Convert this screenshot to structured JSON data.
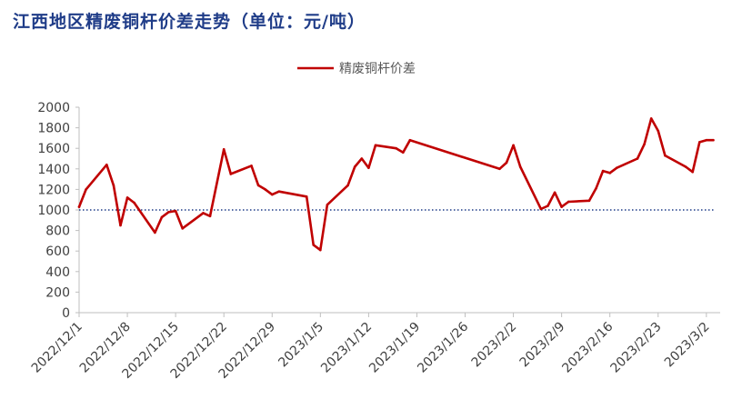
{
  "chart_data": {
    "type": "line",
    "title": "江西地区精废铜杆价差走势（单位：元/吨）",
    "xlabel": "",
    "ylabel": "",
    "ylim": [
      0,
      2000
    ],
    "y_ticks": [
      "0",
      "200",
      "400",
      "600",
      "800",
      "1000",
      "1200",
      "1400",
      "1600",
      "1800",
      "2000"
    ],
    "x_range": [
      "2022-12-01",
      "2023-03-04"
    ],
    "x_ticks": [
      "2022/12/1",
      "2022/12/8",
      "2022/12/15",
      "2022/12/22",
      "2022/12/29",
      "2023/1/5",
      "2023/1/12",
      "2023/1/19",
      "2023/1/26",
      "2023/2/2",
      "2023/2/9",
      "2023/2/16",
      "2023/2/23",
      "2023/3/2"
    ],
    "reference_line": {
      "y": 1000,
      "style": "dotted",
      "color": "#1f3c88"
    },
    "legend": {
      "position": "top",
      "entries": [
        "精废铜杆价差"
      ]
    },
    "grid": false,
    "series": [
      {
        "name": "精废铜杆价差",
        "color": "#c00000",
        "x": [
          "2022-12-01",
          "2022-12-02",
          "2022-12-05",
          "2022-12-06",
          "2022-12-07",
          "2022-12-08",
          "2022-12-09",
          "2022-12-12",
          "2022-12-13",
          "2022-12-14",
          "2022-12-15",
          "2022-12-16",
          "2022-12-19",
          "2022-12-20",
          "2022-12-22",
          "2022-12-23",
          "2022-12-26",
          "2022-12-27",
          "2022-12-28",
          "2022-12-29",
          "2022-12-30",
          "2023-01-03",
          "2023-01-04",
          "2023-01-05",
          "2023-01-06",
          "2023-01-09",
          "2023-01-10",
          "2023-01-11",
          "2023-01-12",
          "2023-01-13",
          "2023-01-16",
          "2023-01-17",
          "2023-01-18",
          "2023-01-31",
          "2023-02-01",
          "2023-02-02",
          "2023-02-03",
          "2023-02-06",
          "2023-02-07",
          "2023-02-08",
          "2023-02-09",
          "2023-02-10",
          "2023-02-13",
          "2023-02-14",
          "2023-02-15",
          "2023-02-16",
          "2023-02-17",
          "2023-02-20",
          "2023-02-21",
          "2023-02-22",
          "2023-02-23",
          "2023-02-24",
          "2023-02-27",
          "2023-02-28",
          "2023-03-01",
          "2023-03-02",
          "2023-03-03"
        ],
        "values": [
          1030,
          1200,
          1440,
          1240,
          850,
          1120,
          1070,
          780,
          930,
          980,
          990,
          820,
          970,
          940,
          1590,
          1350,
          1430,
          1240,
          1200,
          1150,
          1180,
          1130,
          660,
          610,
          1050,
          1240,
          1420,
          1500,
          1410,
          1630,
          1600,
          1560,
          1680,
          1400,
          1460,
          1630,
          1420,
          1010,
          1040,
          1170,
          1030,
          1080,
          1090,
          1210,
          1380,
          1360,
          1410,
          1500,
          1640,
          1890,
          1770,
          1530,
          1420,
          1370,
          1660,
          1680,
          1680
        ]
      }
    ]
  }
}
